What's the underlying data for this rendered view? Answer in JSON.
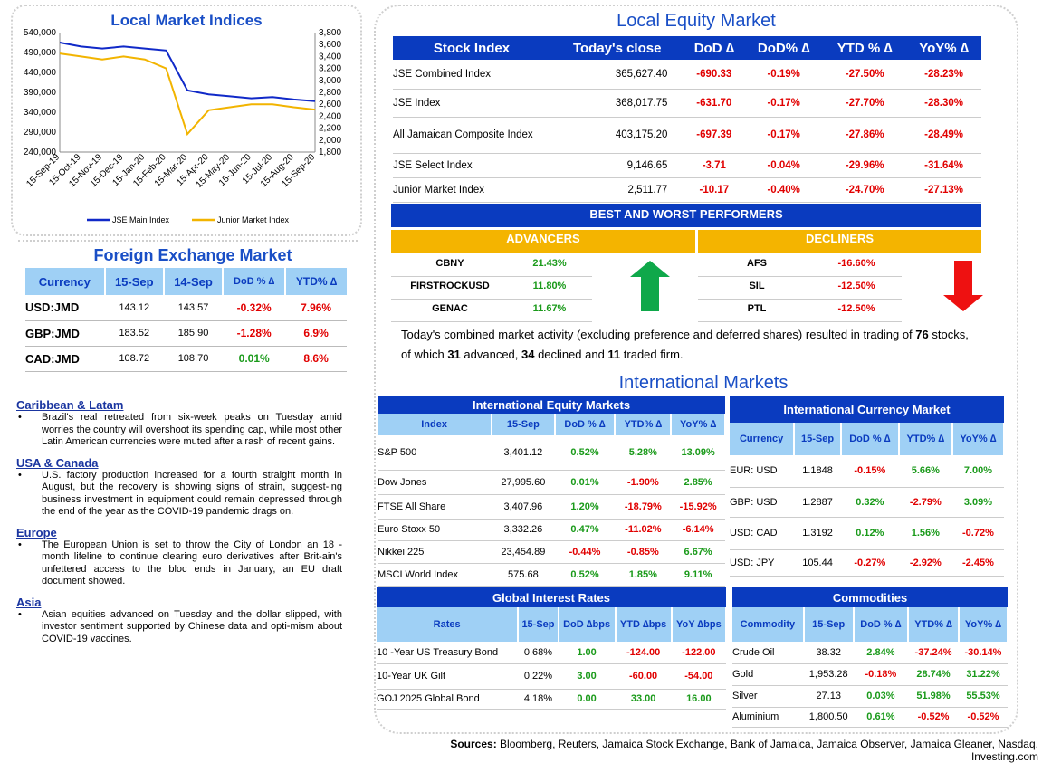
{
  "chart": {
    "title": "Local Market Indices",
    "legend": [
      "JSE Main Index",
      "Junior Market Index"
    ],
    "colors": {
      "main": "#1029c8",
      "junior": "#f2b400"
    }
  },
  "chart_data": {
    "type": "line",
    "title": "Local Market Indices",
    "x": [
      "15-Sep-19",
      "15-Oct-19",
      "15-Nov-19",
      "15-Dec-19",
      "15-Jan-20",
      "15-Feb-20",
      "15-Mar-20",
      "15-Apr-20",
      "15-May-20",
      "15-Jun-20",
      "15-Jul-20",
      "15-Aug-20",
      "15-Sep-20"
    ],
    "xlabels": [
      "15-Sep-19",
      "15-Oct-19",
      "15-Nov-19",
      "15-Dec-19",
      "15-Jan-20",
      "15-Feb-20",
      "15-Mar-20",
      "15-Apr-20",
      "15-May-20",
      "15-Jun-20",
      "15-Jul-20",
      "15-Aug-20",
      "15-Sep-20"
    ],
    "yleft_ticks": [
      "540,000",
      "490,000",
      "440,000",
      "390,000",
      "340,000",
      "290,000",
      "240,000"
    ],
    "yright_ticks": [
      "3,800",
      "3,600",
      "3,400",
      "3,200",
      "3,000",
      "2,800",
      "2,600",
      "2,400",
      "2,200",
      "2,000",
      "1,800"
    ],
    "ylim_left": [
      240000,
      540000
    ],
    "ylim_right": [
      1800,
      3800
    ],
    "series": [
      {
        "name": "JSE Main Index",
        "axis": "left",
        "values": [
          515000,
          505000,
          500000,
          505000,
          500000,
          495000,
          395000,
          385000,
          380000,
          375000,
          378000,
          372000,
          368000
        ]
      },
      {
        "name": "Junior Market Index",
        "axis": "right",
        "values": [
          3450,
          3400,
          3350,
          3400,
          3350,
          3200,
          2100,
          2500,
          2550,
          2600,
          2600,
          2550,
          2511
        ]
      }
    ]
  },
  "fx": {
    "title": "Foreign Exchange Market",
    "headers": [
      "Currency",
      "15-Sep",
      "14-Sep",
      "DoD % ∆",
      "YTD% ∆"
    ],
    "rows": [
      {
        "cur": "USD:JMD",
        "a": "143.12",
        "b": "143.57",
        "dod": "-0.32%",
        "ytd": "7.96%"
      },
      {
        "cur": "GBP:JMD",
        "a": "183.52",
        "b": "185.90",
        "dod": "-1.28%",
        "ytd": "6.9%"
      },
      {
        "cur": "CAD:JMD",
        "a": "108.72",
        "b": "108.70",
        "dod": "0.01%",
        "ytd": "8.6%"
      }
    ]
  },
  "news": [
    {
      "title": "Caribbean & Latam",
      "text": "Brazil's real retreated from six-week peaks on Tuesday amid worries the country will overshoot its spending cap, while most other Latin American currencies were muted after a rash of recent gains."
    },
    {
      "title": "USA & Canada",
      "text": "U.S. factory production increased for a fourth straight month in August, but the recovery is showing signs of strain, suggest-ing business investment in equipment could remain depressed through the end of the year as the COVID-19 pandemic drags on."
    },
    {
      "title": "Europe",
      "text": "The European Union is set to throw the City of London an 18 -month lifeline to continue clearing euro derivatives after Brit-ain's unfettered access to the bloc ends in January, an EU draft document showed."
    },
    {
      "title": "Asia",
      "text": "Asian equities advanced on Tuesday and the dollar slipped, with investor sentiment supported by Chinese data and opti-mism about COVID-19 vaccines."
    }
  ],
  "local_equity": {
    "title": "Local Equity Market",
    "headers": [
      "Stock Index",
      "Today's close",
      "DoD  ∆",
      "DoD% ∆",
      "YTD % ∆",
      "YoY% ∆"
    ],
    "rows": [
      [
        "JSE Combined Index",
        "365,627.40",
        "-690.33",
        "-0.19%",
        "-27.50%",
        "-28.23%"
      ],
      [
        "JSE Index",
        "368,017.75",
        "-631.70",
        "-0.17%",
        "-27.70%",
        "-28.30%"
      ],
      [
        "All Jamaican Composite Index",
        "403,175.20",
        "-697.39",
        "-0.17%",
        "-27.86%",
        "-28.49%"
      ],
      [
        "JSE Select Index",
        "9,146.65",
        "-3.71",
        "-0.04%",
        "-29.96%",
        "-31.64%"
      ],
      [
        "Junior Market Index",
        "2,511.77",
        "-10.17",
        "-0.40%",
        "-24.70%",
        "-27.13%"
      ]
    ]
  },
  "performers": {
    "title": "BEST AND WORST PERFORMERS",
    "adv_label": "ADVANCERS",
    "dec_label": "DECLINERS",
    "advancers": [
      [
        "CBNY",
        "21.43%"
      ],
      [
        "FIRSTROCKUSD",
        "11.80%"
      ],
      [
        "GENAC",
        "11.67%"
      ]
    ],
    "decliners": [
      [
        "AFS",
        "-16.60%"
      ],
      [
        "SIL",
        "-12.50%"
      ],
      [
        "PTL",
        "-12.50%"
      ]
    ],
    "summary_parts": [
      "Today's combined market activity (excluding preference and deferred shares) resulted in trading of ",
      "76",
      " stocks, of which ",
      "31",
      " advanced, ",
      "34",
      " declined and ",
      "11",
      " traded firm."
    ]
  },
  "intl": {
    "title": "International Markets",
    "equity": {
      "title": "International Equity Markets",
      "headers": [
        "Index",
        "15-Sep",
        "DoD % ∆",
        "YTD% ∆",
        "YoY% ∆"
      ],
      "rows": [
        [
          "S&P 500",
          "3,401.12",
          "0.52%",
          "5.28%",
          "13.09%"
        ],
        [
          "Dow Jones",
          "27,995.60",
          "0.01%",
          "-1.90%",
          "2.85%"
        ],
        [
          "FTSE All Share",
          "3,407.96",
          "1.20%",
          "-18.79%",
          "-15.92%"
        ],
        [
          "Euro Stoxx 50",
          "3,332.26",
          "0.47%",
          "-11.02%",
          "-6.14%"
        ],
        [
          "Nikkei 225",
          "23,454.89",
          "-0.44%",
          "-0.85%",
          "6.67%"
        ],
        [
          "MSCI World Index",
          "575.68",
          "0.52%",
          "1.85%",
          "9.11%"
        ]
      ]
    },
    "currency": {
      "title": "International Currency Market",
      "headers": [
        "Currency",
        "15-Sep",
        "DoD % ∆",
        "YTD% ∆",
        "YoY% ∆"
      ],
      "rows": [
        [
          "EUR: USD",
          "1.1848",
          "-0.15%",
          "5.66%",
          "7.00%"
        ],
        [
          "GBP: USD",
          "1.2887",
          "0.32%",
          "-2.79%",
          "3.09%"
        ],
        [
          "USD: CAD",
          "1.3192",
          "0.12%",
          "1.56%",
          "-0.72%"
        ],
        [
          "USD: JPY",
          "105.44",
          "-0.27%",
          "-2.92%",
          "-2.45%"
        ]
      ]
    },
    "rates": {
      "title": "Global Interest Rates",
      "headers": [
        "Rates",
        "15-Sep",
        "DoD ∆bps",
        "YTD ∆bps",
        "YoY ∆bps"
      ],
      "rows": [
        [
          "10 -Year US Treasury Bond",
          "0.68%",
          "1.00",
          "-124.00",
          "-122.00"
        ],
        [
          "10-Year UK Gilt",
          "0.22%",
          "3.00",
          "-60.00",
          "-54.00"
        ],
        [
          "GOJ 2025 Global Bond",
          "4.18%",
          "0.00",
          "33.00",
          "16.00"
        ]
      ]
    },
    "commodities": {
      "title": "Commodities",
      "headers": [
        "Commodity",
        "15-Sep",
        "DoD % ∆",
        "YTD% ∆",
        "YoY% ∆"
      ],
      "rows": [
        [
          "Crude Oil",
          "38.32",
          "2.84%",
          "-37.24%",
          "-30.14%"
        ],
        [
          "Gold",
          "1,953.28",
          "-0.18%",
          "28.74%",
          "31.22%"
        ],
        [
          "Silver",
          "27.13",
          "0.03%",
          "51.98%",
          "55.53%"
        ],
        [
          "Aluminium",
          "1,800.50",
          "0.61%",
          "-0.52%",
          "-0.52%"
        ]
      ]
    }
  },
  "sources": {
    "label": "Sources:",
    "text": " Bloomberg, Reuters, Jamaica Stock Exchange, Bank of Jamaica, Jamaica Observer, Jamaica Gleaner, Nasdaq, Investing.com"
  }
}
